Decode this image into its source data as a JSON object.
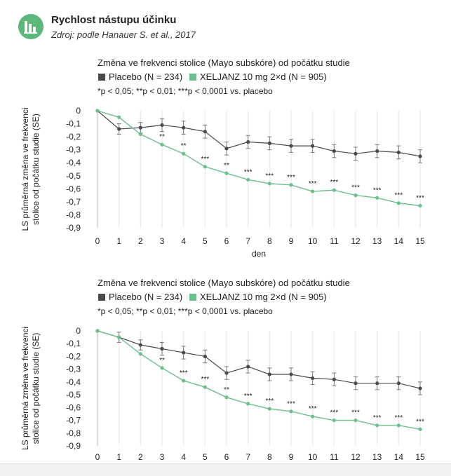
{
  "header": {
    "title": "Rychlost nástupu účinku",
    "source": "Zdroj: podle Hanauer S. et al., 2017",
    "icon": "bar-chart-icon"
  },
  "colors": {
    "placebo": "#4a4a4a",
    "xeljanz": "#6cc08b",
    "grid": "#e6e6e6",
    "brand": "#5cb87a"
  },
  "chart_data": [
    {
      "type": "line",
      "title": "Změna ve frekvenci stolice (Mayo subskóre) od počátku studie",
      "legend": [
        "Placebo (N = 234)",
        "XELJANZ 10 mg 2×d (N = 905)"
      ],
      "note": "*p < 0,05; **p < 0,01; ***p < 0,0001 vs. placebo",
      "ylabel_lines": [
        "LS průměrná změna ve frekvenci",
        "stolice od počátku studie (SE)"
      ],
      "xlabel": "den",
      "x": [
        0,
        1,
        2,
        3,
        4,
        5,
        6,
        7,
        8,
        9,
        10,
        11,
        12,
        13,
        14,
        15
      ],
      "ylim": [
        -0.9,
        0
      ],
      "yticks": [
        "0",
        "-0,1",
        "-0,2",
        "-0,3",
        "-0,4",
        "-0,5",
        "-0,6",
        "-0,7",
        "-0,8",
        "-0,9"
      ],
      "series": [
        {
          "name": "Placebo (N = 234)",
          "values": [
            0,
            -0.14,
            -0.13,
            -0.11,
            -0.13,
            -0.16,
            -0.29,
            -0.24,
            -0.25,
            -0.27,
            -0.27,
            -0.31,
            -0.33,
            -0.31,
            -0.32,
            -0.35
          ],
          "err": [
            0,
            0.04,
            0.04,
            0.05,
            0.05,
            0.05,
            0.05,
            0.05,
            0.05,
            0.05,
            0.05,
            0.05,
            0.05,
            0.05,
            0.05,
            0.05
          ]
        },
        {
          "name": "XELJANZ 10 mg 2×d (N = 905)",
          "values": [
            0,
            -0.05,
            -0.18,
            -0.26,
            -0.33,
            -0.43,
            -0.48,
            -0.53,
            -0.56,
            -0.57,
            -0.62,
            -0.61,
            -0.65,
            -0.67,
            -0.71,
            -0.73
          ]
        }
      ],
      "significance": [
        "",
        "",
        "",
        "**",
        "**",
        "***",
        "**",
        "***",
        "***",
        "***",
        "***",
        "***",
        "***",
        "***",
        "***",
        "***"
      ]
    },
    {
      "type": "line",
      "title": "Změna ve frekvenci stolice (Mayo subskóre) od počátku studie",
      "legend": [
        "Placebo (N = 234)",
        "XELJANZ 10 mg 2×d (N = 905)"
      ],
      "note": "*p < 0,05; **p < 0,01; ***p < 0,0001 vs. placebo",
      "ylabel_lines": [
        "LS průměrná změna ve frekvenci",
        "stolice od počátku studie (SE)"
      ],
      "xlabel": "",
      "x": [
        0,
        1,
        2,
        3,
        4,
        5,
        6,
        7,
        8,
        9,
        10,
        11,
        12,
        13,
        14,
        15
      ],
      "ylim": [
        -0.9,
        0
      ],
      "yticks": [
        "0",
        "-0,1",
        "-0,2",
        "-0,3",
        "-0,4",
        "-0,5",
        "-0,6",
        "-0,7",
        "-0,8",
        "-0,9"
      ],
      "series": [
        {
          "name": "Placebo (N = 234)",
          "values": [
            0,
            -0.05,
            -0.11,
            -0.14,
            -0.17,
            -0.2,
            -0.33,
            -0.28,
            -0.34,
            -0.34,
            -0.37,
            -0.38,
            -0.41,
            -0.41,
            -0.41,
            -0.45
          ],
          "err": [
            0,
            0.04,
            0.04,
            0.05,
            0.05,
            0.05,
            0.05,
            0.05,
            0.05,
            0.05,
            0.05,
            0.05,
            0.05,
            0.05,
            0.05,
            0.05
          ]
        },
        {
          "name": "XELJANZ 10 mg 2×d (N = 905)",
          "values": [
            0,
            -0.05,
            -0.18,
            -0.29,
            -0.39,
            -0.44,
            -0.52,
            -0.57,
            -0.61,
            -0.63,
            -0.67,
            -0.7,
            -0.7,
            -0.74,
            -0.74,
            -0.77
          ]
        }
      ],
      "significance": [
        "",
        "",
        "",
        "**",
        "***",
        "***",
        "**",
        "***",
        "***",
        "***",
        "***",
        "***",
        "***",
        "***",
        "***",
        "***"
      ]
    }
  ]
}
